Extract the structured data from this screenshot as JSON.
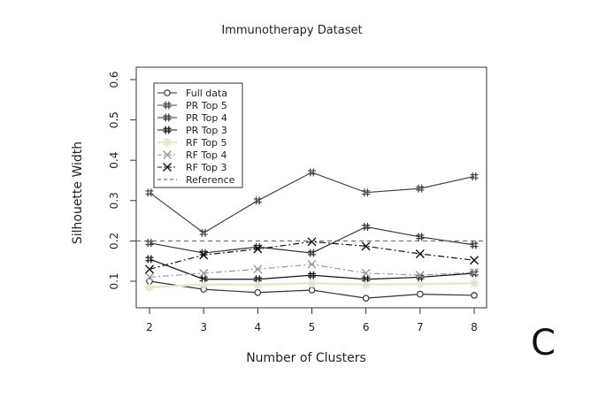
{
  "panel_letter": "C",
  "chart_data": {
    "type": "line",
    "title": "Immunotherapy Dataset",
    "xlabel": "Number of Clusters",
    "ylabel": "Silhouette Width",
    "x": [
      2,
      3,
      4,
      5,
      6,
      7,
      8
    ],
    "xlim": [
      2,
      8
    ],
    "ylim": [
      0.05,
      0.6
    ],
    "x_ticks": [
      "2",
      "3",
      "4",
      "5",
      "6",
      "7",
      "8"
    ],
    "y_ticks": [
      "0.1",
      "0.2",
      "0.3",
      "0.4",
      "0.5",
      "0.6"
    ],
    "grid": false,
    "legend_position": "top-left",
    "series": [
      {
        "name": "Full data",
        "values": [
          0.1,
          0.08,
          0.072,
          0.078,
          0.058,
          0.068,
          0.065
        ],
        "color": "#333333",
        "marker": "o",
        "dash": "solid"
      },
      {
        "name": "PR Top 5",
        "values": [
          0.32,
          0.22,
          0.3,
          0.37,
          0.32,
          0.33,
          0.36
        ],
        "color": "#444444",
        "marker": "#",
        "dash": "solid"
      },
      {
        "name": "PR Top 4",
        "values": [
          0.195,
          0.17,
          0.185,
          0.17,
          0.235,
          0.21,
          0.19
        ],
        "color": "#333333",
        "marker": "#",
        "dash": "solid"
      },
      {
        "name": "PR Top 3",
        "values": [
          0.155,
          0.105,
          0.105,
          0.115,
          0.105,
          0.11,
          0.12
        ],
        "color": "#111111",
        "marker": "#",
        "dash": "solid"
      },
      {
        "name": "RF Top 5",
        "values": [
          0.085,
          0.092,
          0.092,
          0.095,
          0.092,
          0.093,
          0.095
        ],
        "color": "#e2e8c8",
        "marker": "star",
        "dash": "solid"
      },
      {
        "name": "RF Top 4",
        "values": [
          0.11,
          0.12,
          0.13,
          0.142,
          0.12,
          0.115,
          0.122
        ],
        "color": "#999999",
        "marker": "x",
        "dash": "dashdot"
      },
      {
        "name": "RF Top 3",
        "values": [
          0.13,
          0.165,
          0.18,
          0.198,
          0.187,
          0.168,
          0.152
        ],
        "color": "#111111",
        "marker": "x",
        "dash": "dashdot"
      },
      {
        "name": "Reference",
        "reference_y": 0.2,
        "color": "#555555",
        "marker": "",
        "dash": "dashed"
      }
    ]
  }
}
